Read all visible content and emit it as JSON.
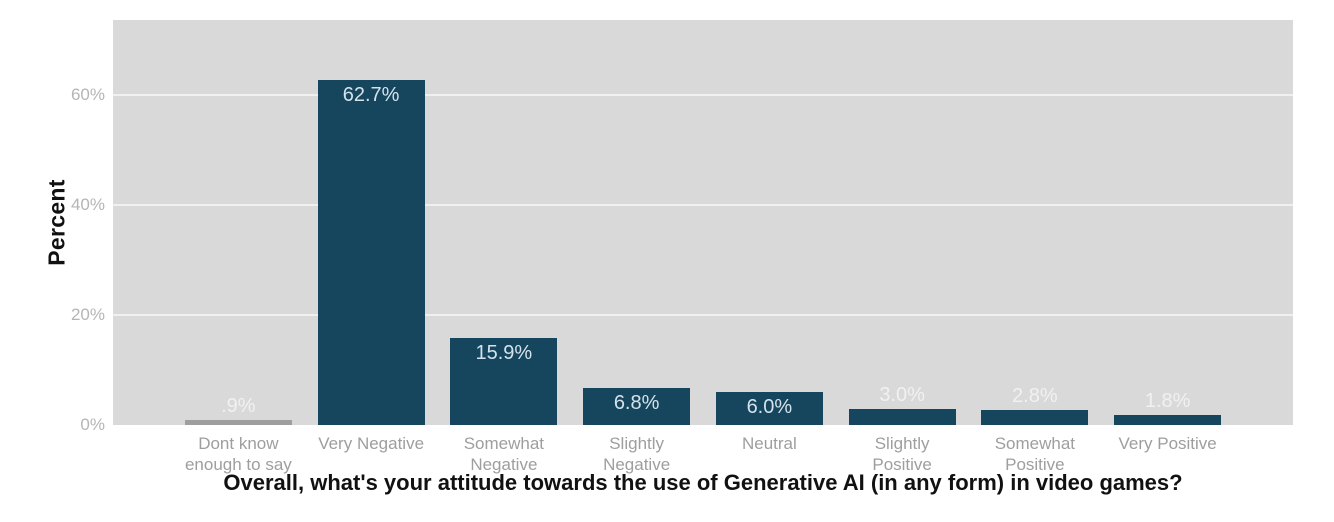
{
  "colors": {
    "plot_background": "#D9D9D9",
    "gridline": "#FFFFFF",
    "bar_primary": "#15465E",
    "bar_muted": "#9E9E9E",
    "value_label_inside": "#D5E2EB",
    "value_label_above": "#F1F1F1",
    "tick_label": "#B5B5B5",
    "category_label": "#9E9E9E",
    "axis_title": "#111111"
  },
  "chart_data": {
    "type": "bar",
    "title": "",
    "xlabel": "Overall, what's your attitude towards the use of Generative AI (in any form) in video games?",
    "ylabel": "Percent",
    "ylim": [
      0,
      73.6
    ],
    "grid": true,
    "yticks": [
      {
        "value": 0,
        "label": "0%"
      },
      {
        "value": 20,
        "label": "20%"
      },
      {
        "value": 40,
        "label": "40%"
      },
      {
        "value": 60,
        "label": "60%"
      }
    ],
    "categories": [
      "Dont know enough to say",
      "Very Negative",
      "Somewhat Negative",
      "Slightly Negative",
      "Neutral",
      "Slightly Positive",
      "Somewhat Positive",
      "Very Positive"
    ],
    "points": [
      {
        "category": "Dont know\nenough to say",
        "value": 0.9,
        "display": ".9%",
        "label_inside": false,
        "muted": true
      },
      {
        "category": "Very Negative",
        "value": 62.7,
        "display": "62.7%",
        "label_inside": true,
        "muted": false
      },
      {
        "category": "Somewhat\nNegative",
        "value": 15.9,
        "display": "15.9%",
        "label_inside": true,
        "muted": false
      },
      {
        "category": "Slightly\nNegative",
        "value": 6.8,
        "display": "6.8%",
        "label_inside": true,
        "muted": false
      },
      {
        "category": "Neutral",
        "value": 6.0,
        "display": "6.0%",
        "label_inside": true,
        "muted": false
      },
      {
        "category": "Slightly\nPositive",
        "value": 3.0,
        "display": "3.0%",
        "label_inside": false,
        "muted": false
      },
      {
        "category": "Somewhat\nPositive",
        "value": 2.8,
        "display": "2.8%",
        "label_inside": false,
        "muted": false
      },
      {
        "category": "Very Positive",
        "value": 1.8,
        "display": "1.8%",
        "label_inside": false,
        "muted": false
      }
    ]
  }
}
